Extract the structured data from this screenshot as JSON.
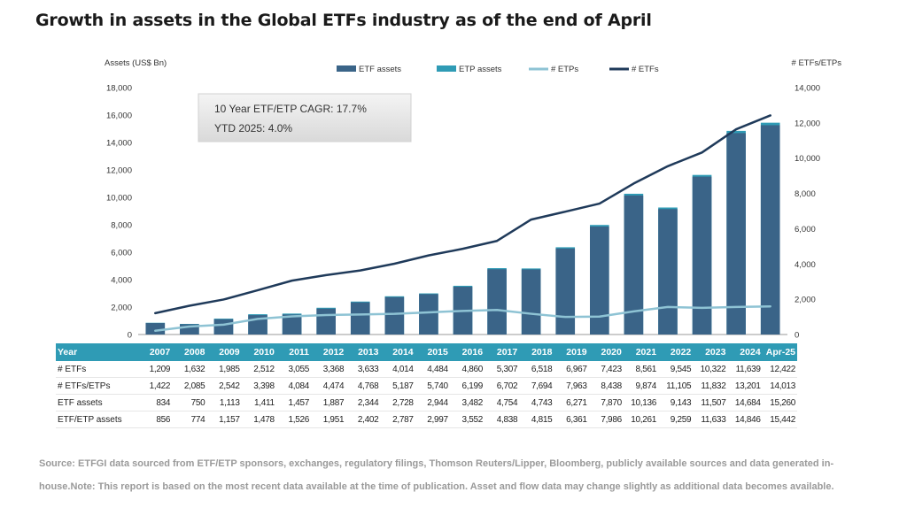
{
  "title": "Growth in assets in the Global ETFs industry as of the end of April",
  "source": "Source: ETFGI data sourced from ETF/ETP sponsors, exchanges, regulatory filings, Thomson Reuters/Lipper, Bloomberg, publicly available sources and data generated in-house.Note: This report is based on the most recent data available at the time of publication. Asset and flow data may change slightly as additional data becomes available.",
  "colors": {
    "etf_assets": "#3a6488",
    "etp_assets": "#2f9bb5",
    "n_etps": "#8ec3d4",
    "n_etfs": "#1f3a5a",
    "table_header": "#2f9bb5"
  },
  "chart_data": {
    "type": "bar",
    "ylabel": "Assets (US$ Bn)",
    "y2label": "# ETFs/ETPs",
    "ylim": [
      0,
      18000
    ],
    "y2lim": [
      0,
      14000
    ],
    "yticks": [
      "0",
      "2,000",
      "4,000",
      "6,000",
      "8,000",
      "10,000",
      "12,000",
      "14,000",
      "16,000",
      "18,000"
    ],
    "y2ticks": [
      "0",
      "2,000",
      "4,000",
      "6,000",
      "8,000",
      "10,000",
      "12,000",
      "14,000"
    ],
    "legend_position": "top",
    "annotation": [
      "10 Year ETF/ETP CAGR: 17.7%",
      "YTD 2025: 4.0%"
    ],
    "categories": [
      "2007",
      "2008",
      "2009",
      "2010",
      "2011",
      "2012",
      "2013",
      "2014",
      "2015",
      "2016",
      "2017",
      "2018",
      "2019",
      "2020",
      "2021",
      "2022",
      "2023",
      "2024",
      "Apr-25"
    ],
    "series": [
      {
        "name": "ETF assets",
        "kind": "bar",
        "axis": "left",
        "values": [
          834,
          750,
          1113,
          1411,
          1457,
          1887,
          2344,
          2728,
          2944,
          3482,
          4754,
          4743,
          6271,
          7870,
          10136,
          9143,
          11507,
          14684,
          15260
        ]
      },
      {
        "name": "ETP assets",
        "kind": "bar",
        "axis": "left",
        "values": [
          856,
          774,
          1157,
          1478,
          1526,
          1951,
          2402,
          2787,
          2997,
          3552,
          4838,
          4815,
          6361,
          7986,
          10261,
          9259,
          11633,
          14846,
          15442
        ]
      },
      {
        "name": "# ETPs",
        "kind": "line",
        "axis": "right",
        "values": [
          213,
          453,
          557,
          886,
          1029,
          1106,
          1135,
          1173,
          1256,
          1339,
          1395,
          1176,
          996,
          1015,
          1313,
          1560,
          1510,
          1562,
          1591
        ]
      },
      {
        "name": "# ETFs",
        "kind": "line",
        "axis": "right",
        "values": [
          1209,
          1632,
          1985,
          2512,
          3055,
          3368,
          3633,
          4014,
          4484,
          4860,
          5307,
          6518,
          6967,
          7423,
          8561,
          9545,
          10322,
          11639,
          12422
        ]
      }
    ]
  },
  "table": {
    "header_label": "Year",
    "years": [
      "2007",
      "2008",
      "2009",
      "2010",
      "2011",
      "2012",
      "2013",
      "2014",
      "2015",
      "2016",
      "2017",
      "2018",
      "2019",
      "2020",
      "2021",
      "2022",
      "2023",
      "2024",
      "Apr-25"
    ],
    "rows": [
      {
        "label": "# ETFs",
        "values": [
          "1,209",
          "1,632",
          "1,985",
          "2,512",
          "3,055",
          "3,368",
          "3,633",
          "4,014",
          "4,484",
          "4,860",
          "5,307",
          "6,518",
          "6,967",
          "7,423",
          "8,561",
          "9,545",
          "10,322",
          "11,639",
          "12,422"
        ]
      },
      {
        "label": "# ETFs/ETPs",
        "values": [
          "1,422",
          "2,085",
          "2,542",
          "3,398",
          "4,084",
          "4,474",
          "4,768",
          "5,187",
          "5,740",
          "6,199",
          "6,702",
          "7,694",
          "7,963",
          "8,438",
          "9,874",
          "11,105",
          "11,832",
          "13,201",
          "14,013"
        ]
      },
      {
        "label": "ETF assets",
        "values": [
          "834",
          "750",
          "1,113",
          "1,411",
          "1,457",
          "1,887",
          "2,344",
          "2,728",
          "2,944",
          "3,482",
          "4,754",
          "4,743",
          "6,271",
          "7,870",
          "10,136",
          "9,143",
          "11,507",
          "14,684",
          "15,260"
        ]
      },
      {
        "label": "ETF/ETP assets",
        "values": [
          "856",
          "774",
          "1,157",
          "1,478",
          "1,526",
          "1,951",
          "2,402",
          "2,787",
          "2,997",
          "3,552",
          "4,838",
          "4,815",
          "6,361",
          "7,986",
          "10,261",
          "9,259",
          "11,633",
          "14,846",
          "15,442"
        ]
      }
    ]
  }
}
